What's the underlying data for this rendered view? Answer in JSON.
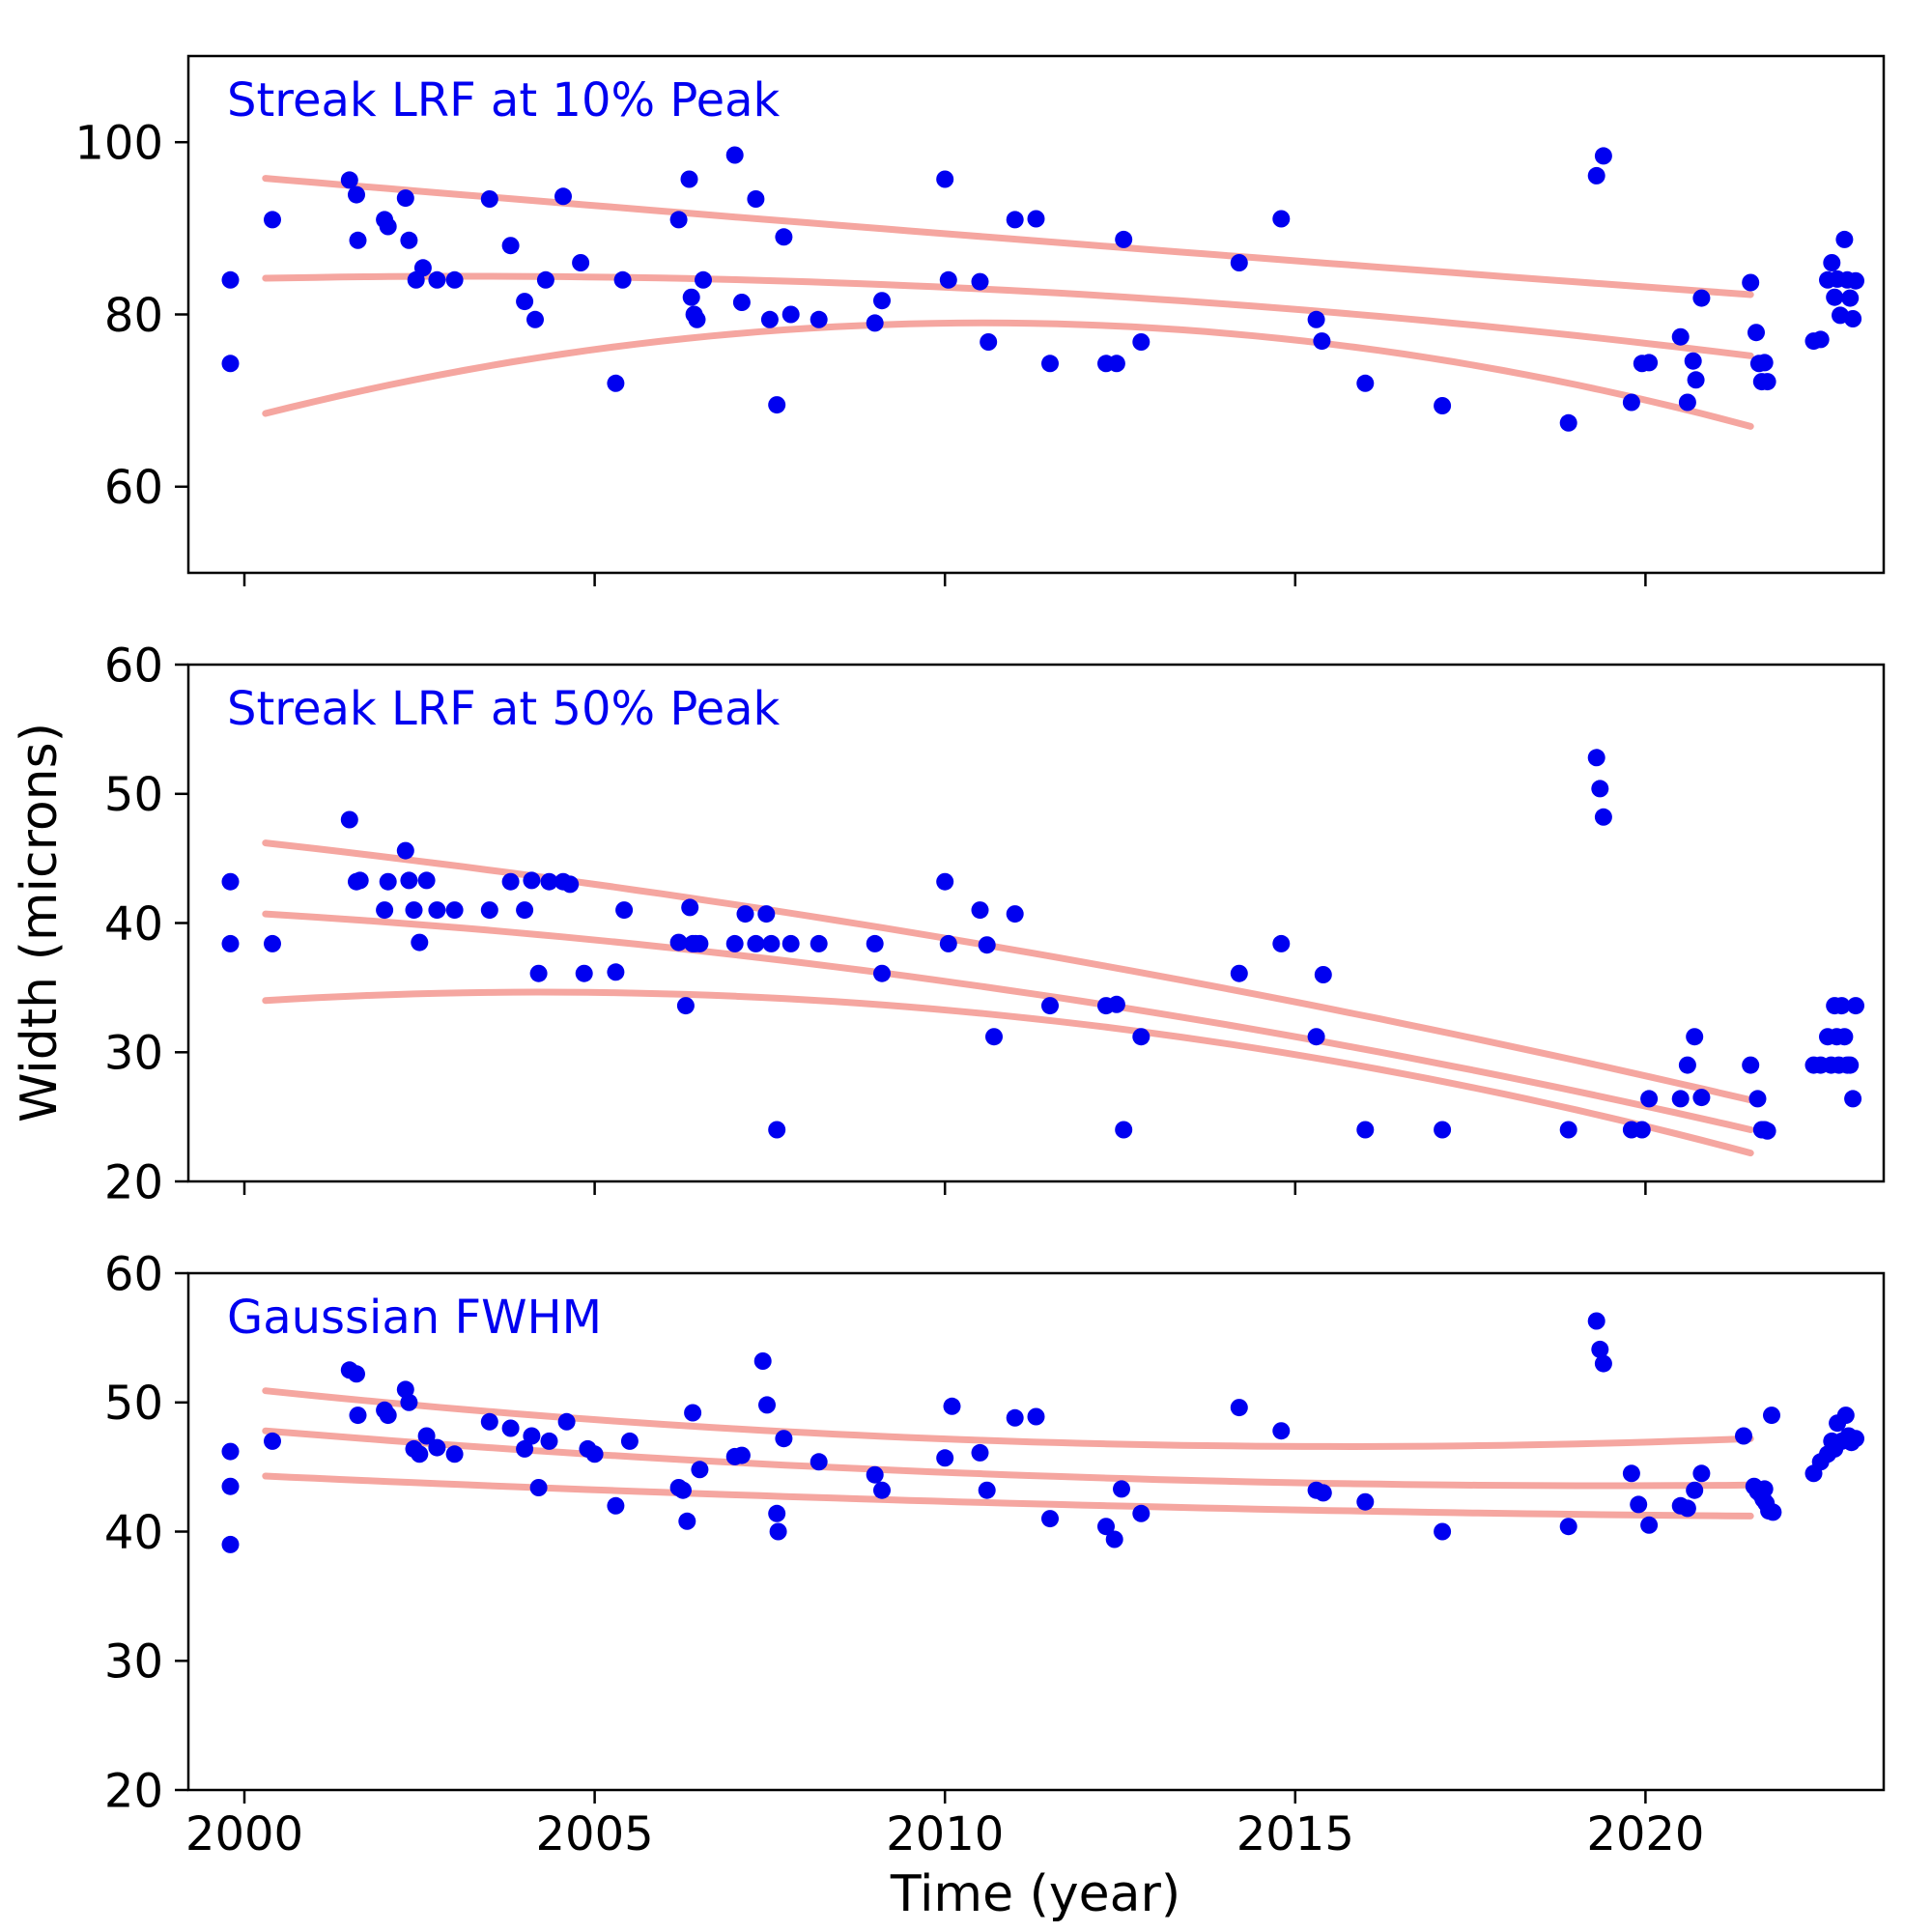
{
  "figure": {
    "xlabel": "Time (year)",
    "ylabel": "Width (microns)",
    "colors": {
      "points": "#0000f0",
      "trend": "#f5a6a0",
      "axes": "#000000",
      "title": "#0000f0",
      "background": "#ffffff"
    }
  },
  "x_axis": {
    "lim": [
      1999.2,
      2023.4
    ],
    "ticks": [
      2000,
      2005,
      2010,
      2015,
      2020
    ]
  },
  "chart_data": [
    {
      "type": "scatter",
      "title": "Streak LRF at 10% Peak",
      "ylim": [
        50,
        110
      ],
      "yticks": [
        60,
        80,
        100
      ],
      "trend_curves": [
        {
          "name": "upper-fit",
          "control_points": [
            [
              2000.3,
              95.8
            ],
            [
              2010.9,
              88.8
            ],
            [
              2021.5,
              82.3
            ]
          ]
        },
        {
          "name": "middle-fit",
          "control_points": [
            [
              2000.3,
              84.2
            ],
            [
              2010.9,
              82.8
            ],
            [
              2021.5,
              75.2
            ]
          ]
        },
        {
          "name": "lower-fit",
          "control_points": [
            [
              2000.3,
              68.5
            ],
            [
              2010.9,
              79.0
            ],
            [
              2021.5,
              67.0
            ]
          ]
        }
      ],
      "points": [
        [
          1999.8,
          84.0
        ],
        [
          1999.8,
          74.3
        ],
        [
          2000.4,
          91.0
        ],
        [
          2001.5,
          95.6
        ],
        [
          2001.6,
          93.9
        ],
        [
          2001.62,
          88.6
        ],
        [
          2002.0,
          91.0
        ],
        [
          2002.05,
          90.2
        ],
        [
          2002.3,
          93.5
        ],
        [
          2002.35,
          88.6
        ],
        [
          2002.45,
          84.0
        ],
        [
          2002.55,
          85.4
        ],
        [
          2002.75,
          84.0
        ],
        [
          2003.0,
          84.0
        ],
        [
          2003.5,
          93.4
        ],
        [
          2003.8,
          88.0
        ],
        [
          2004.0,
          81.5
        ],
        [
          2004.15,
          79.4
        ],
        [
          2004.3,
          84.0
        ],
        [
          2004.55,
          93.7
        ],
        [
          2004.8,
          86.0
        ],
        [
          2005.3,
          72.0
        ],
        [
          2005.4,
          84.0
        ],
        [
          2006.2,
          91.0
        ],
        [
          2006.35,
          95.7
        ],
        [
          2006.38,
          82.0
        ],
        [
          2006.42,
          80.0
        ],
        [
          2006.46,
          79.4
        ],
        [
          2006.55,
          84.0
        ],
        [
          2007.0,
          98.5
        ],
        [
          2007.1,
          81.4
        ],
        [
          2007.3,
          93.4
        ],
        [
          2007.5,
          79.4
        ],
        [
          2007.6,
          69.5
        ],
        [
          2007.7,
          89.0
        ],
        [
          2007.8,
          80.0
        ],
        [
          2008.2,
          79.4
        ],
        [
          2009.0,
          79.0
        ],
        [
          2009.1,
          81.6
        ],
        [
          2010.0,
          95.7
        ],
        [
          2010.05,
          84.0
        ],
        [
          2010.5,
          83.8
        ],
        [
          2010.62,
          76.8
        ],
        [
          2011.0,
          91.0
        ],
        [
          2011.3,
          91.1
        ],
        [
          2011.5,
          74.3
        ],
        [
          2012.3,
          74.3
        ],
        [
          2012.45,
          74.3
        ],
        [
          2012.55,
          88.7
        ],
        [
          2012.8,
          76.8
        ],
        [
          2014.2,
          86.0
        ],
        [
          2014.8,
          91.1
        ],
        [
          2015.3,
          79.4
        ],
        [
          2015.38,
          76.9
        ],
        [
          2016.0,
          72.0
        ],
        [
          2017.1,
          69.4
        ],
        [
          2018.9,
          67.4
        ],
        [
          2019.3,
          96.1
        ],
        [
          2019.4,
          98.4
        ],
        [
          2019.8,
          69.8
        ],
        [
          2019.95,
          74.3
        ],
        [
          2020.05,
          74.4
        ],
        [
          2020.5,
          77.4
        ],
        [
          2020.6,
          69.8
        ],
        [
          2020.68,
          74.6
        ],
        [
          2020.72,
          72.4
        ],
        [
          2020.8,
          81.9
        ],
        [
          2021.5,
          83.7
        ],
        [
          2021.58,
          77.9
        ],
        [
          2021.62,
          74.3
        ],
        [
          2021.66,
          72.2
        ],
        [
          2021.7,
          74.4
        ],
        [
          2021.74,
          72.2
        ],
        [
          2022.4,
          76.9
        ],
        [
          2022.5,
          77.1
        ],
        [
          2022.6,
          84.0
        ],
        [
          2022.66,
          86.0
        ],
        [
          2022.7,
          82.0
        ],
        [
          2022.74,
          84.1
        ],
        [
          2022.78,
          79.9
        ],
        [
          2022.84,
          88.7
        ],
        [
          2022.88,
          84.0
        ],
        [
          2022.92,
          81.9
        ],
        [
          2022.96,
          79.5
        ],
        [
          2023.0,
          83.9
        ]
      ]
    },
    {
      "type": "scatter",
      "title": "Streak LRF at 50% Peak",
      "ylim": [
        20,
        60
      ],
      "yticks": [
        20,
        30,
        40,
        50,
        60
      ],
      "trend_curves": [
        {
          "name": "upper-fit",
          "control_points": [
            [
              2000.3,
              46.2
            ],
            [
              2010.9,
              38.0
            ],
            [
              2021.5,
              26.3
            ]
          ]
        },
        {
          "name": "middle-fit",
          "control_points": [
            [
              2000.3,
              40.7
            ],
            [
              2010.9,
              34.8
            ],
            [
              2021.5,
              24.0
            ]
          ]
        },
        {
          "name": "lower-fit",
          "control_points": [
            [
              2000.3,
              34.0
            ],
            [
              2010.9,
              32.8
            ],
            [
              2021.5,
              22.2
            ]
          ]
        }
      ],
      "points": [
        [
          1999.8,
          43.2
        ],
        [
          1999.8,
          38.4
        ],
        [
          2000.4,
          38.4
        ],
        [
          2001.5,
          48.0
        ],
        [
          2001.6,
          43.2
        ],
        [
          2001.65,
          43.3
        ],
        [
          2002.0,
          41.0
        ],
        [
          2002.05,
          43.2
        ],
        [
          2002.3,
          45.6
        ],
        [
          2002.35,
          43.3
        ],
        [
          2002.42,
          41.0
        ],
        [
          2002.5,
          38.5
        ],
        [
          2002.6,
          43.3
        ],
        [
          2002.75,
          41.0
        ],
        [
          2003.0,
          41.0
        ],
        [
          2003.5,
          41.0
        ],
        [
          2003.8,
          43.2
        ],
        [
          2004.0,
          41.0
        ],
        [
          2004.1,
          43.3
        ],
        [
          2004.2,
          36.1
        ],
        [
          2004.35,
          43.2
        ],
        [
          2004.55,
          43.2
        ],
        [
          2004.65,
          43.0
        ],
        [
          2004.85,
          36.1
        ],
        [
          2005.3,
          36.2
        ],
        [
          2005.42,
          41.0
        ],
        [
          2006.2,
          38.5
        ],
        [
          2006.3,
          33.6
        ],
        [
          2006.36,
          41.2
        ],
        [
          2006.4,
          38.4
        ],
        [
          2006.44,
          38.4
        ],
        [
          2006.5,
          38.4
        ],
        [
          2007.0,
          38.4
        ],
        [
          2007.15,
          40.7
        ],
        [
          2007.3,
          38.4
        ],
        [
          2007.45,
          40.7
        ],
        [
          2007.52,
          38.4
        ],
        [
          2007.6,
          24.0
        ],
        [
          2007.8,
          38.4
        ],
        [
          2008.2,
          38.4
        ],
        [
          2009.0,
          38.4
        ],
        [
          2009.1,
          36.1
        ],
        [
          2010.0,
          43.2
        ],
        [
          2010.05,
          38.4
        ],
        [
          2010.5,
          41.0
        ],
        [
          2010.6,
          38.3
        ],
        [
          2010.7,
          31.2
        ],
        [
          2011.0,
          40.7
        ],
        [
          2011.5,
          33.6
        ],
        [
          2012.3,
          33.6
        ],
        [
          2012.45,
          33.7
        ],
        [
          2012.55,
          24.0
        ],
        [
          2012.8,
          31.2
        ],
        [
          2014.2,
          36.1
        ],
        [
          2014.8,
          38.4
        ],
        [
          2015.3,
          31.2
        ],
        [
          2015.4,
          36.0
        ],
        [
          2016.0,
          24.0
        ],
        [
          2017.1,
          24.0
        ],
        [
          2018.9,
          24.0
        ],
        [
          2019.3,
          52.8
        ],
        [
          2019.35,
          50.4
        ],
        [
          2019.4,
          48.2
        ],
        [
          2019.8,
          24.0
        ],
        [
          2019.95,
          24.0
        ],
        [
          2020.05,
          26.4
        ],
        [
          2020.5,
          26.4
        ],
        [
          2020.6,
          29.0
        ],
        [
          2020.7,
          31.2
        ],
        [
          2020.8,
          26.5
        ],
        [
          2021.5,
          29.0
        ],
        [
          2021.6,
          26.4
        ],
        [
          2021.66,
          24.0
        ],
        [
          2021.7,
          24.0
        ],
        [
          2021.74,
          23.9
        ],
        [
          2022.4,
          29.0
        ],
        [
          2022.5,
          29.0
        ],
        [
          2022.6,
          31.2
        ],
        [
          2022.65,
          29.0
        ],
        [
          2022.7,
          33.6
        ],
        [
          2022.73,
          31.2
        ],
        [
          2022.76,
          29.0
        ],
        [
          2022.8,
          33.6
        ],
        [
          2022.84,
          31.2
        ],
        [
          2022.88,
          29.0
        ],
        [
          2022.92,
          29.0
        ],
        [
          2022.96,
          26.4
        ],
        [
          2023.0,
          33.6
        ]
      ]
    },
    {
      "type": "scatter",
      "title": "Gaussian FWHM",
      "ylim": [
        20,
        60
      ],
      "yticks": [
        20,
        30,
        40,
        50,
        60
      ],
      "trend_curves": [
        {
          "name": "upper-fit",
          "control_points": [
            [
              2000.3,
              50.9
            ],
            [
              2010.9,
              47.0
            ],
            [
              2021.5,
              47.2
            ]
          ]
        },
        {
          "name": "middle-fit",
          "control_points": [
            [
              2000.3,
              47.8
            ],
            [
              2010.9,
              44.4
            ],
            [
              2021.5,
              43.6
            ]
          ]
        },
        {
          "name": "lower-fit",
          "control_points": [
            [
              2000.3,
              44.3
            ],
            [
              2010.9,
              42.2
            ],
            [
              2021.5,
              41.2
            ]
          ]
        }
      ],
      "points": [
        [
          1999.8,
          46.2
        ],
        [
          1999.8,
          43.5
        ],
        [
          1999.8,
          39.0
        ],
        [
          2000.4,
          47.0
        ],
        [
          2001.5,
          52.5
        ],
        [
          2001.6,
          52.2
        ],
        [
          2001.62,
          49.0
        ],
        [
          2002.0,
          49.4
        ],
        [
          2002.05,
          49.0
        ],
        [
          2002.3,
          51.0
        ],
        [
          2002.35,
          50.0
        ],
        [
          2002.42,
          46.4
        ],
        [
          2002.5,
          46.0
        ],
        [
          2002.6,
          47.4
        ],
        [
          2002.75,
          46.5
        ],
        [
          2003.0,
          46.0
        ],
        [
          2003.5,
          48.5
        ],
        [
          2003.8,
          48.0
        ],
        [
          2004.0,
          46.4
        ],
        [
          2004.1,
          47.4
        ],
        [
          2004.2,
          43.4
        ],
        [
          2004.35,
          47.0
        ],
        [
          2004.6,
          48.5
        ],
        [
          2004.9,
          46.4
        ],
        [
          2005.0,
          46.0
        ],
        [
          2005.3,
          42.0
        ],
        [
          2005.5,
          47.0
        ],
        [
          2006.2,
          43.4
        ],
        [
          2006.26,
          43.2
        ],
        [
          2006.32,
          40.8
        ],
        [
          2006.4,
          49.2
        ],
        [
          2006.5,
          44.8
        ],
        [
          2007.0,
          45.8
        ],
        [
          2007.1,
          45.9
        ],
        [
          2007.4,
          53.2
        ],
        [
          2007.46,
          49.8
        ],
        [
          2007.6,
          41.4
        ],
        [
          2007.62,
          40.0
        ],
        [
          2007.7,
          47.2
        ],
        [
          2008.2,
          45.4
        ],
        [
          2009.0,
          44.4
        ],
        [
          2009.1,
          43.2
        ],
        [
          2010.0,
          45.7
        ],
        [
          2010.1,
          49.7
        ],
        [
          2010.5,
          46.1
        ],
        [
          2010.6,
          43.2
        ],
        [
          2011.0,
          48.8
        ],
        [
          2011.3,
          48.9
        ],
        [
          2011.5,
          41.0
        ],
        [
          2012.3,
          40.4
        ],
        [
          2012.42,
          39.4
        ],
        [
          2012.52,
          43.3
        ],
        [
          2012.8,
          41.4
        ],
        [
          2014.2,
          49.6
        ],
        [
          2014.8,
          47.8
        ],
        [
          2015.3,
          43.2
        ],
        [
          2015.4,
          43.0
        ],
        [
          2016.0,
          42.3
        ],
        [
          2017.1,
          40.0
        ],
        [
          2018.9,
          40.4
        ],
        [
          2019.3,
          56.3
        ],
        [
          2019.35,
          54.1
        ],
        [
          2019.4,
          53.0
        ],
        [
          2019.8,
          44.5
        ],
        [
          2019.9,
          42.1
        ],
        [
          2020.05,
          40.5
        ],
        [
          2020.5,
          42.0
        ],
        [
          2020.6,
          41.8
        ],
        [
          2020.7,
          43.2
        ],
        [
          2020.8,
          44.5
        ],
        [
          2021.4,
          47.4
        ],
        [
          2021.55,
          43.5
        ],
        [
          2021.6,
          43.1
        ],
        [
          2021.64,
          42.9
        ],
        [
          2021.68,
          42.5
        ],
        [
          2021.7,
          43.3
        ],
        [
          2021.72,
          42.2
        ],
        [
          2021.76,
          41.6
        ],
        [
          2021.8,
          49.0
        ],
        [
          2021.82,
          41.5
        ],
        [
          2022.4,
          44.5
        ],
        [
          2022.5,
          45.4
        ],
        [
          2022.6,
          46.0
        ],
        [
          2022.66,
          47.0
        ],
        [
          2022.7,
          46.4
        ],
        [
          2022.74,
          48.4
        ],
        [
          2022.8,
          47.0
        ],
        [
          2022.86,
          49.0
        ],
        [
          2022.9,
          47.4
        ],
        [
          2022.94,
          46.9
        ],
        [
          2023.0,
          47.2
        ]
      ]
    }
  ]
}
